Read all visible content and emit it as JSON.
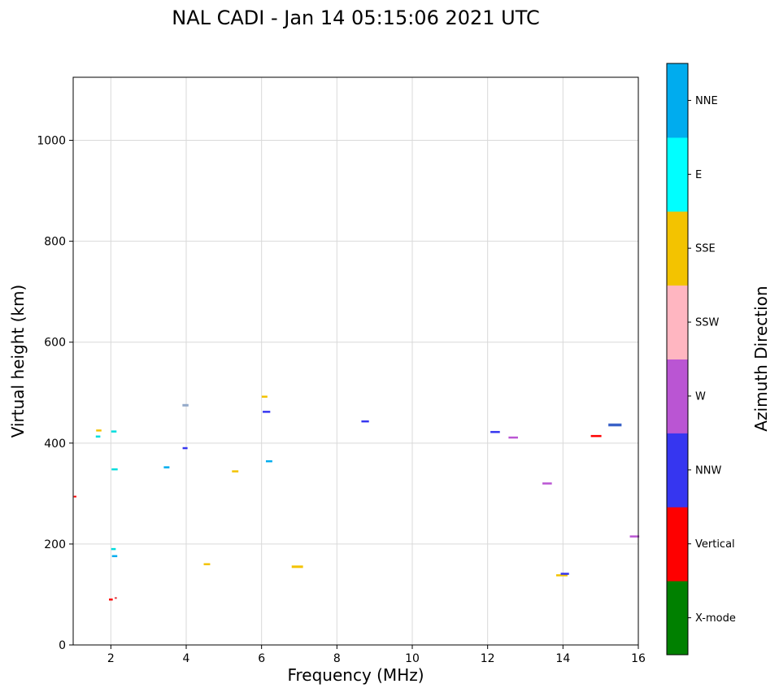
{
  "chart_data": {
    "type": "scatter",
    "title": "NAL CADI - Jan 14 05:15:06 2021 UTC",
    "xlabel": "Frequency (MHz)",
    "ylabel": "Virtual height (km)",
    "xlim": [
      1,
      16
    ],
    "ylim": [
      0,
      1125
    ],
    "xticks": [
      2,
      4,
      6,
      8,
      10,
      12,
      14,
      16
    ],
    "yticks": [
      0,
      200,
      400,
      600,
      800,
      1000
    ],
    "grid": true,
    "marker": "horizontal-dash",
    "colorbar": {
      "label": "Azimuth Direction",
      "position": "right",
      "categories_bottom_to_top": [
        {
          "label": "X-mode",
          "color": "#008000"
        },
        {
          "label": "Vertical",
          "color": "#fe0000"
        },
        {
          "label": "NNW",
          "color": "#3636f0"
        },
        {
          "label": "W",
          "color": "#ba55d3"
        },
        {
          "label": "SSW",
          "color": "#ffb6c1"
        },
        {
          "label": "SSE",
          "color": "#f3c300"
        },
        {
          "label": "E",
          "color": "#00ffff"
        },
        {
          "label": "NNE",
          "color": "#00acee"
        }
      ]
    },
    "points": [
      {
        "x": 1.05,
        "y": 294,
        "dir": "Vertical",
        "color": "#fe0000",
        "w": 0.07,
        "t": 2
      },
      {
        "x": 1.68,
        "y": 425,
        "dir": "SSE",
        "color": "#f3c300",
        "w": 0.14,
        "t": 2.5
      },
      {
        "x": 1.66,
        "y": 413,
        "dir": "E",
        "color": "#00dddd",
        "w": 0.12,
        "t": 2.5
      },
      {
        "x": 2.08,
        "y": 423,
        "dir": "E",
        "color": "#00dddd",
        "w": 0.14,
        "t": 2.5
      },
      {
        "x": 2.1,
        "y": 348,
        "dir": "E",
        "color": "#00dddd",
        "w": 0.16,
        "t": 2.5
      },
      {
        "x": 2.07,
        "y": 190,
        "dir": "E",
        "color": "#00dddd",
        "w": 0.12,
        "t": 2.5
      },
      {
        "x": 2.1,
        "y": 176,
        "dir": "NNE",
        "color": "#00acee",
        "w": 0.14,
        "t": 2.5
      },
      {
        "x": 2.0,
        "y": 90,
        "dir": "Vertical",
        "color": "#fe0000",
        "w": 0.1,
        "t": 2.5
      },
      {
        "x": 2.13,
        "y": 93,
        "dir": "Vertical",
        "color": "#e04448",
        "w": 0.06,
        "t": 2
      },
      {
        "x": 3.48,
        "y": 352,
        "dir": "NNE",
        "color": "#00acee",
        "w": 0.15,
        "t": 2.5
      },
      {
        "x": 3.98,
        "y": 475,
        "dir": "mixed",
        "color": "#93a9c9",
        "w": 0.16,
        "t": 3
      },
      {
        "x": 3.97,
        "y": 390,
        "dir": "NNW",
        "color": "#3636f0",
        "w": 0.13,
        "t": 2.5
      },
      {
        "x": 4.55,
        "y": 160,
        "dir": "SSE",
        "color": "#f3c300",
        "w": 0.17,
        "t": 2.5
      },
      {
        "x": 5.3,
        "y": 344,
        "dir": "SSE",
        "color": "#f3c300",
        "w": 0.17,
        "t": 2.5
      },
      {
        "x": 6.08,
        "y": 492,
        "dir": "SSE",
        "color": "#f3c300",
        "w": 0.15,
        "t": 2.5
      },
      {
        "x": 6.13,
        "y": 462,
        "dir": "NNW",
        "color": "#3636f0",
        "w": 0.2,
        "t": 2.5
      },
      {
        "x": 6.2,
        "y": 364,
        "dir": "NNE",
        "color": "#00acee",
        "w": 0.17,
        "t": 2.5
      },
      {
        "x": 6.95,
        "y": 155,
        "dir": "SSE",
        "color": "#f3c300",
        "w": 0.3,
        "t": 3
      },
      {
        "x": 8.75,
        "y": 443,
        "dir": "NNW",
        "color": "#3636f0",
        "w": 0.2,
        "t": 2.5
      },
      {
        "x": 12.2,
        "y": 422,
        "dir": "NNW",
        "color": "#3636f0",
        "w": 0.25,
        "t": 2.5
      },
      {
        "x": 12.68,
        "y": 411,
        "dir": "W",
        "color": "#ba55d3",
        "w": 0.25,
        "t": 2.5
      },
      {
        "x": 13.58,
        "y": 320,
        "dir": "W",
        "color": "#ba55d3",
        "w": 0.25,
        "t": 2.5
      },
      {
        "x": 13.97,
        "y": 138,
        "dir": "SSE",
        "color": "#f3c300",
        "w": 0.3,
        "t": 2.5
      },
      {
        "x": 14.05,
        "y": 141,
        "dir": "NNW",
        "color": "#3636f0",
        "w": 0.22,
        "t": 2.5
      },
      {
        "x": 14.88,
        "y": 414,
        "dir": "Vertical",
        "color": "#fe0000",
        "w": 0.28,
        "t": 2.5
      },
      {
        "x": 15.38,
        "y": 436,
        "dir": "NNW",
        "color": "#3a62c8",
        "w": 0.35,
        "t": 3.5
      },
      {
        "x": 15.9,
        "y": 215,
        "dir": "W",
        "color": "#ba55d3",
        "w": 0.25,
        "t": 2.5
      }
    ]
  }
}
